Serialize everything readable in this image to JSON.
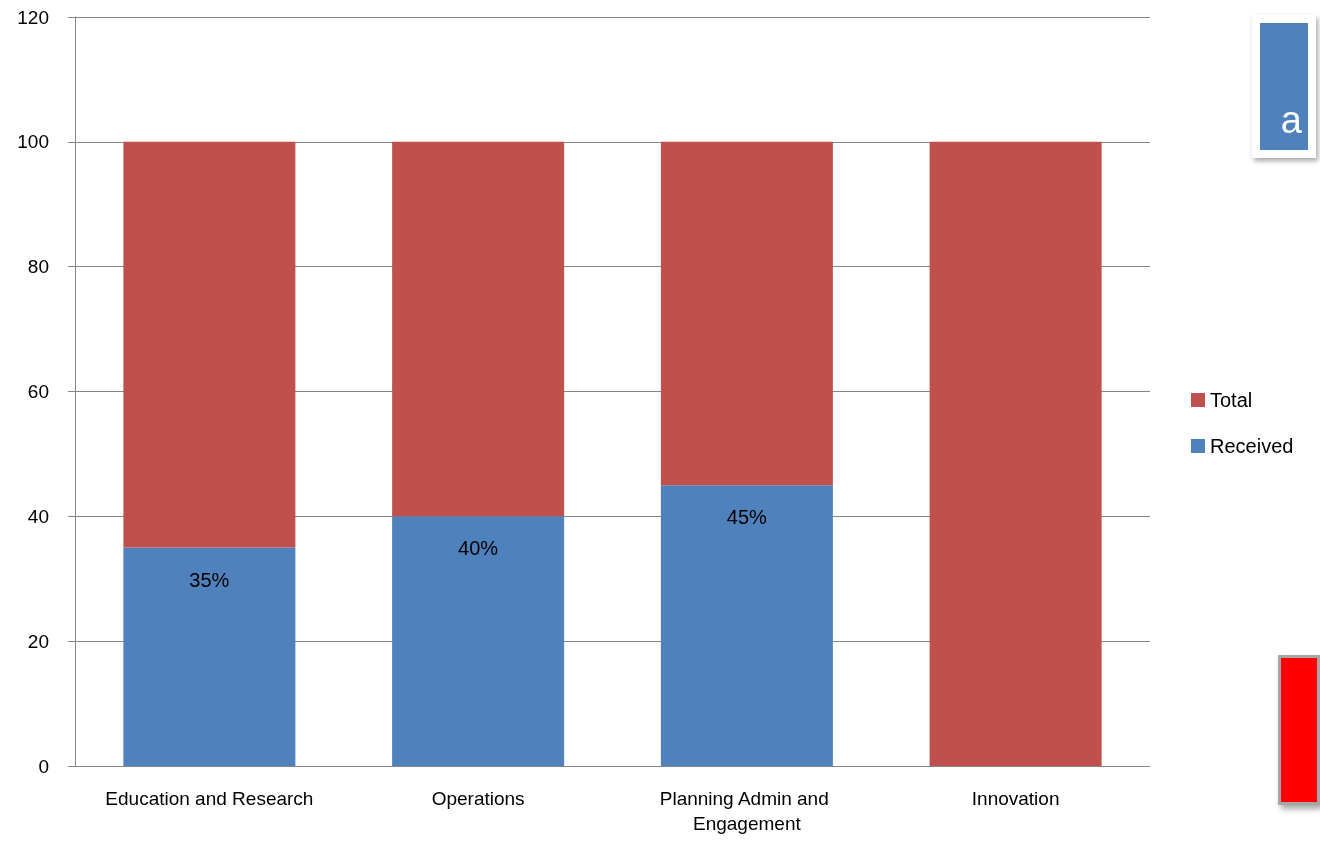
{
  "chart_data": {
    "type": "bar",
    "stacked": true,
    "categories": [
      "Education and Research",
      "Operations",
      "Planning Admin and Engagement",
      "Innovation"
    ],
    "series": [
      {
        "name": "Received",
        "color": "#4f81bd",
        "values": [
          35,
          40,
          45,
          null
        ],
        "value_labels": [
          "35%",
          "40%",
          "45%",
          null
        ]
      },
      {
        "name": "Total",
        "color": "#c0504d",
        "values": [
          65,
          60,
          55,
          100
        ]
      }
    ],
    "ylim": [
      0,
      120
    ],
    "yticks": [
      0,
      20,
      40,
      60,
      80,
      100,
      120
    ],
    "grid": "y",
    "legend": "right",
    "annotations": [
      "a"
    ]
  }
}
